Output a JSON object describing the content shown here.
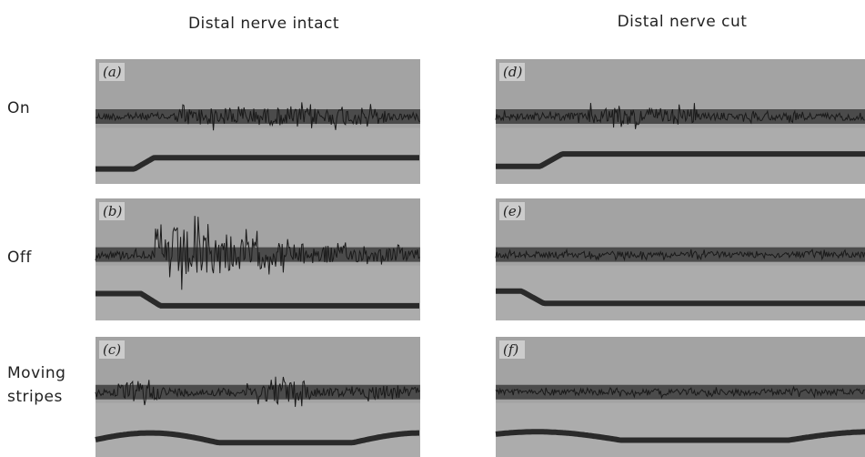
{
  "column_headers": [
    "Distal nerve intact",
    "Distal nerve cut"
  ],
  "row_labels": [
    "On",
    "Off",
    "Moving stripes"
  ],
  "panels": [
    {
      "label": "(a)"
    },
    {
      "label": "(b)"
    },
    {
      "label": "(c)"
    },
    {
      "label": "(d)"
    },
    {
      "label": "(e)"
    },
    {
      "label": "(f)"
    }
  ]
}
